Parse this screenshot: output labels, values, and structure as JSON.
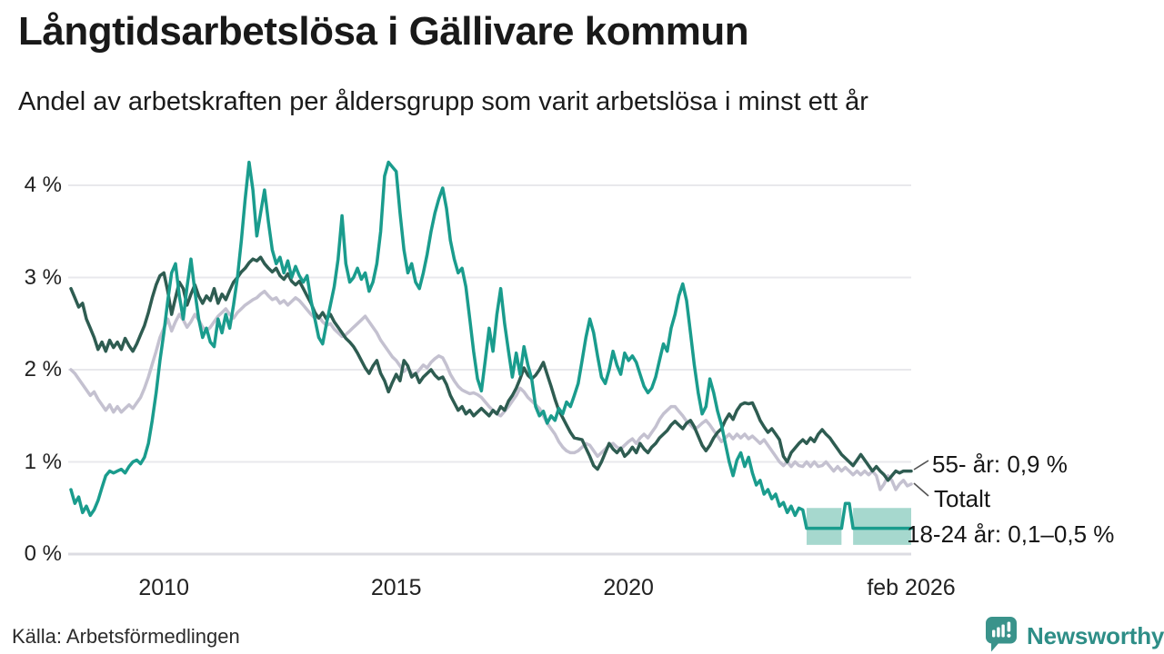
{
  "header": {
    "title": "Långtidsarbetslösa i Gällivare kommun",
    "subtitle": "Andel av arbetskraften per åldersgrupp som varit arbetslösa i minst ett år"
  },
  "annotations": [
    {
      "id": "55",
      "label": "55- år: 0,9 %"
    },
    {
      "id": "totalt",
      "label": "Totalt"
    },
    {
      "id": "1824",
      "label": "18-24 år: 0,1–0,5 %"
    }
  ],
  "footer": {
    "source": "Källa: Arbetsförmedlingen",
    "brand": "Newsworthy"
  },
  "colors": {
    "teal": "#1a9c8d",
    "dark_green": "#2e5c51",
    "gray": "#c4c1d0",
    "band": "#a6d8ce",
    "grid": "#e8e8ec",
    "zero_line": "#dcdce2",
    "leader": "#555555",
    "logo": "#3a938b"
  },
  "chart_data": {
    "type": "line",
    "title": "Långtidsarbetslösa i Gällivare kommun",
    "subtitle": "Andel av arbetskraften per åldersgrupp som varit arbetslösa i minst ett år",
    "unit": "%",
    "grid": "horizontal",
    "ylim": [
      0,
      4.4
    ],
    "x": {
      "start": "2008-01",
      "end": "2026-02",
      "interval": "monthly"
    },
    "x_ticks": [
      {
        "label": "2010",
        "date": "2010-01"
      },
      {
        "label": "2015",
        "date": "2015-01"
      },
      {
        "label": "2020",
        "date": "2020-01"
      },
      {
        "label": "feb 2026",
        "date": "2026-02"
      }
    ],
    "y_axis": {
      "ticks": [
        {
          "label": "4 %",
          "value": 4
        },
        {
          "label": "3 %",
          "value": 3
        },
        {
          "label": "2 %",
          "value": 2
        },
        {
          "label": "1 %",
          "value": 1
        },
        {
          "label": "0 %",
          "value": 0
        }
      ]
    },
    "series": [
      {
        "name": "Totalt",
        "color": "#c4c1d0",
        "end_label": "Totalt",
        "values": [
          2.0,
          1.96,
          1.9,
          1.84,
          1.78,
          1.72,
          1.76,
          1.68,
          1.62,
          1.56,
          1.62,
          1.54,
          1.6,
          1.54,
          1.58,
          1.62,
          1.58,
          1.64,
          1.7,
          1.8,
          1.92,
          2.06,
          2.2,
          2.35,
          2.45,
          2.55,
          2.42,
          2.52,
          2.6,
          2.54,
          2.46,
          2.52,
          2.6,
          2.54,
          2.46,
          2.42,
          2.46,
          2.52,
          2.58,
          2.62,
          2.66,
          2.6,
          2.56,
          2.62,
          2.66,
          2.7,
          2.73,
          2.76,
          2.78,
          2.82,
          2.85,
          2.8,
          2.76,
          2.78,
          2.72,
          2.75,
          2.7,
          2.74,
          2.78,
          2.75,
          2.7,
          2.65,
          2.6,
          2.56,
          2.58,
          2.52,
          2.48,
          2.5,
          2.44,
          2.4,
          2.36,
          2.38,
          2.42,
          2.46,
          2.5,
          2.54,
          2.58,
          2.52,
          2.46,
          2.4,
          2.32,
          2.26,
          2.2,
          2.14,
          2.1,
          2.04,
          1.98,
          2.02,
          1.96,
          1.95,
          2.0,
          2.05,
          2.02,
          2.08,
          2.12,
          2.15,
          2.13,
          2.05,
          1.95,
          1.88,
          1.82,
          1.78,
          1.76,
          1.74,
          1.75,
          1.73,
          1.7,
          1.65,
          1.6,
          1.56,
          1.52,
          1.5,
          1.55,
          1.6,
          1.66,
          1.72,
          1.8,
          1.76,
          1.7,
          1.66,
          1.62,
          1.58,
          1.5,
          1.42,
          1.36,
          1.3,
          1.22,
          1.16,
          1.12,
          1.1,
          1.1,
          1.12,
          1.16,
          1.2,
          1.18,
          1.12,
          1.06,
          1.1,
          1.14,
          1.18,
          1.2,
          1.16,
          1.14,
          1.18,
          1.22,
          1.25,
          1.2,
          1.26,
          1.3,
          1.26,
          1.32,
          1.38,
          1.46,
          1.52,
          1.56,
          1.6,
          1.6,
          1.55,
          1.5,
          1.44,
          1.4,
          1.36,
          1.38,
          1.42,
          1.45,
          1.4,
          1.34,
          1.28,
          1.22,
          1.26,
          1.3,
          1.25,
          1.3,
          1.26,
          1.3,
          1.25,
          1.28,
          1.24,
          1.2,
          1.24,
          1.18,
          1.12,
          1.06,
          1.0,
          0.96,
          1.0,
          0.95,
          1.0,
          0.96,
          0.95,
          1.0,
          0.95,
          1.0,
          0.95,
          0.96,
          1.0,
          0.95,
          0.9,
          0.95,
          0.9,
          0.94,
          0.9,
          0.86,
          0.9,
          0.86,
          0.9,
          0.86,
          0.9,
          0.85,
          0.7,
          0.76,
          0.85,
          0.8,
          0.7,
          0.76,
          0.8,
          0.74,
          0.76
        ]
      },
      {
        "name": "55- år",
        "color": "#2e5c51",
        "end_label": "55- år: 0,9 %",
        "values": [
          2.88,
          2.78,
          2.68,
          2.72,
          2.55,
          2.45,
          2.35,
          2.22,
          2.3,
          2.2,
          2.32,
          2.24,
          2.3,
          2.22,
          2.34,
          2.26,
          2.2,
          2.28,
          2.38,
          2.48,
          2.62,
          2.78,
          2.92,
          3.02,
          3.05,
          2.85,
          2.6,
          2.78,
          2.95,
          2.88,
          2.7,
          2.82,
          2.92,
          2.8,
          2.72,
          2.8,
          2.75,
          2.88,
          2.72,
          2.82,
          2.76,
          2.86,
          2.95,
          3.0,
          3.06,
          3.1,
          3.16,
          3.2,
          3.18,
          3.22,
          3.15,
          3.1,
          3.06,
          3.1,
          3.02,
          2.98,
          3.04,
          2.96,
          2.92,
          2.96,
          2.88,
          2.8,
          2.72,
          2.62,
          2.56,
          2.62,
          2.55,
          2.6,
          2.52,
          2.46,
          2.4,
          2.34,
          2.3,
          2.25,
          2.18,
          2.1,
          2.02,
          1.96,
          2.04,
          2.1,
          1.96,
          1.88,
          1.76,
          1.86,
          1.95,
          1.88,
          2.1,
          2.04,
          1.92,
          1.96,
          1.86,
          1.92,
          1.96,
          2.0,
          1.94,
          1.9,
          1.92,
          1.84,
          1.72,
          1.64,
          1.56,
          1.6,
          1.52,
          1.56,
          1.5,
          1.54,
          1.58,
          1.54,
          1.5,
          1.56,
          1.52,
          1.6,
          1.56,
          1.66,
          1.72,
          1.8,
          1.9,
          2.02,
          1.94,
          1.9,
          1.94,
          2.0,
          2.08,
          1.95,
          1.82,
          1.68,
          1.56,
          1.48,
          1.4,
          1.32,
          1.26,
          1.25,
          1.24,
          1.15,
          1.06,
          0.96,
          0.92,
          1.0,
          1.1,
          1.2,
          1.14,
          1.1,
          1.15,
          1.06,
          1.1,
          1.16,
          1.1,
          1.2,
          1.14,
          1.1,
          1.16,
          1.2,
          1.26,
          1.3,
          1.34,
          1.4,
          1.44,
          1.4,
          1.36,
          1.42,
          1.45,
          1.38,
          1.28,
          1.18,
          1.12,
          1.18,
          1.26,
          1.32,
          1.36,
          1.45,
          1.52,
          1.46,
          1.56,
          1.62,
          1.64,
          1.63,
          1.64,
          1.55,
          1.45,
          1.38,
          1.32,
          1.36,
          1.3,
          1.24,
          1.06,
          1.0,
          1.1,
          1.15,
          1.2,
          1.24,
          1.2,
          1.26,
          1.22,
          1.3,
          1.35,
          1.3,
          1.26,
          1.2,
          1.14,
          1.08,
          1.04,
          1.0,
          0.96,
          1.02,
          1.08,
          1.02,
          0.96,
          0.9,
          0.95,
          0.9,
          0.86,
          0.8,
          0.85,
          0.9,
          0.88,
          0.9,
          0.9,
          0.9
        ]
      },
      {
        "name": "18-24 år",
        "color": "#1a9c8d",
        "end_label": "18-24 år: 0,1–0,5 %",
        "values": [
          0.7,
          0.55,
          0.62,
          0.45,
          0.52,
          0.42,
          0.48,
          0.58,
          0.72,
          0.85,
          0.9,
          0.88,
          0.9,
          0.92,
          0.88,
          0.95,
          1.0,
          1.02,
          0.98,
          1.05,
          1.2,
          1.45,
          1.75,
          2.1,
          2.4,
          2.75,
          3.05,
          3.15,
          2.8,
          2.55,
          2.9,
          3.2,
          2.85,
          2.55,
          2.35,
          2.45,
          2.3,
          2.25,
          2.55,
          2.4,
          2.6,
          2.45,
          2.7,
          3.0,
          3.4,
          3.85,
          4.25,
          3.95,
          3.45,
          3.7,
          3.95,
          3.6,
          3.3,
          3.15,
          3.22,
          3.05,
          3.18,
          3.0,
          3.12,
          3.02,
          2.95,
          3.02,
          2.75,
          2.55,
          2.35,
          2.28,
          2.5,
          2.7,
          2.9,
          3.2,
          3.67,
          3.15,
          2.95,
          3.0,
          3.1,
          2.98,
          3.05,
          2.85,
          2.95,
          3.15,
          3.5,
          4.1,
          4.25,
          4.2,
          4.15,
          3.7,
          3.3,
          3.05,
          3.15,
          2.95,
          2.88,
          3.05,
          3.25,
          3.5,
          3.7,
          3.85,
          3.97,
          3.75,
          3.4,
          3.2,
          3.05,
          3.1,
          2.9,
          2.55,
          2.2,
          1.9,
          1.77,
          2.1,
          2.45,
          2.2,
          2.6,
          2.88,
          2.5,
          2.2,
          1.92,
          2.18,
          1.95,
          2.25,
          2.05,
          1.9,
          1.6,
          1.5,
          1.55,
          1.42,
          1.5,
          1.45,
          1.58,
          1.52,
          1.65,
          1.6,
          1.72,
          1.85,
          2.1,
          2.35,
          2.55,
          2.4,
          2.15,
          1.92,
          1.85,
          2.0,
          2.2,
          2.05,
          1.95,
          2.18,
          2.1,
          2.15,
          2.08,
          1.95,
          1.82,
          1.75,
          1.8,
          1.92,
          2.1,
          2.28,
          2.2,
          2.45,
          2.6,
          2.8,
          2.93,
          2.75,
          2.4,
          2.05,
          1.75,
          1.52,
          1.6,
          1.9,
          1.75,
          1.55,
          1.4,
          1.2,
          1.0,
          0.85,
          1.02,
          1.1,
          0.95,
          1.05,
          0.88,
          0.75,
          0.8,
          0.65,
          0.7,
          0.6,
          0.65,
          0.52,
          0.56,
          0.45,
          0.52,
          0.42,
          0.5,
          0.48,
          0.28,
          0.28,
          0.28,
          0.28,
          0.28,
          0.28,
          0.28,
          0.28,
          0.28,
          0.28,
          0.55,
          0.55,
          0.28,
          0.28,
          0.28,
          0.28,
          0.28,
          0.28,
          0.28,
          0.28,
          0.28,
          0.28,
          0.28,
          0.28,
          0.28,
          0.28,
          0.28,
          0.28
        ]
      }
    ],
    "band": {
      "series": "18-24 år",
      "low": 0.1,
      "high": 0.5,
      "color": "#a6d8ce",
      "segments": [
        {
          "from": "2023-11",
          "to": "2024-08"
        },
        {
          "from": "2024-11",
          "to": "2026-02"
        }
      ]
    }
  }
}
